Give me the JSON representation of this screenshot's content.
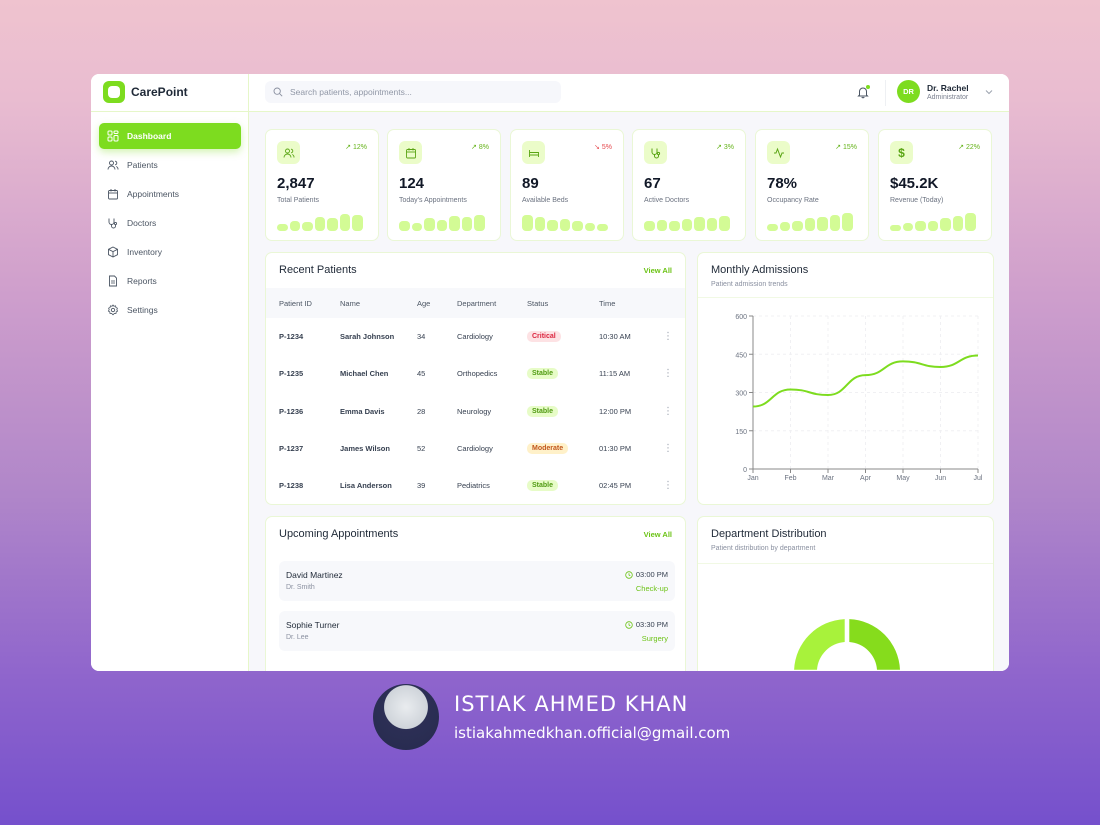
{
  "app": {
    "name": "CarePoint",
    "search_placeholder": "Search patients, appointments...",
    "user": {
      "initials": "DR",
      "name": "Dr. Rachel",
      "role": "Administrator"
    }
  },
  "sidebar": {
    "items": [
      {
        "label": "Dashboard",
        "icon": "dashboard-grid-icon",
        "active": true
      },
      {
        "label": "Patients",
        "icon": "users-icon",
        "active": false
      },
      {
        "label": "Appointments",
        "icon": "calendar-icon",
        "active": false
      },
      {
        "label": "Doctors",
        "icon": "stethoscope-icon",
        "active": false
      },
      {
        "label": "Inventory",
        "icon": "box-icon",
        "active": false
      },
      {
        "label": "Reports",
        "icon": "file-text-icon",
        "active": false
      },
      {
        "label": "Settings",
        "icon": "gear-icon",
        "active": false
      }
    ]
  },
  "stats": [
    {
      "value": "2,847",
      "label": "Total Patients",
      "trend": "12%",
      "direction": "up",
      "icon": "users-icon",
      "bars": [
        7,
        10,
        9,
        14,
        13,
        17,
        16
      ]
    },
    {
      "value": "124",
      "label": "Today's Appointments",
      "trend": "8%",
      "direction": "up",
      "icon": "calendar-icon",
      "bars": [
        10,
        8,
        13,
        11,
        15,
        14,
        16
      ]
    },
    {
      "value": "89",
      "label": "Available Beds",
      "trend": "5%",
      "direction": "down",
      "icon": "bed-icon",
      "bars": [
        16,
        14,
        11,
        12,
        10,
        8,
        7
      ]
    },
    {
      "value": "67",
      "label": "Active Doctors",
      "trend": "3%",
      "direction": "up",
      "icon": "stethoscope-icon",
      "bars": [
        10,
        11,
        10,
        12,
        14,
        13,
        15
      ]
    },
    {
      "value": "78%",
      "label": "Occupancy Rate",
      "trend": "15%",
      "direction": "up",
      "icon": "activity-icon",
      "bars": [
        7,
        9,
        10,
        13,
        14,
        16,
        18
      ]
    },
    {
      "value": "$45.2K",
      "label": "Revenue (Today)",
      "trend": "22%",
      "direction": "up",
      "icon": "dollar-icon",
      "bars": [
        6,
        8,
        10,
        10,
        13,
        15,
        18
      ]
    }
  ],
  "recent_patients": {
    "title": "Recent Patients",
    "view_all": "View All",
    "columns": [
      "Patient ID",
      "Name",
      "Age",
      "Department",
      "Status",
      "Time"
    ],
    "rows": [
      {
        "id": "P-1234",
        "name": "Sarah Johnson",
        "age": "34",
        "department": "Cardiology",
        "status": "Critical",
        "status_type": "critical",
        "time": "10:30 AM"
      },
      {
        "id": "P-1235",
        "name": "Michael Chen",
        "age": "45",
        "department": "Orthopedics",
        "status": "Stable",
        "status_type": "stable",
        "time": "11:15 AM"
      },
      {
        "id": "P-1236",
        "name": "Emma Davis",
        "age": "28",
        "department": "Neurology",
        "status": "Stable",
        "status_type": "stable",
        "time": "12:00 PM"
      },
      {
        "id": "P-1237",
        "name": "James Wilson",
        "age": "52",
        "department": "Cardiology",
        "status": "Moderate",
        "status_type": "moderate",
        "time": "01:30 PM"
      },
      {
        "id": "P-1238",
        "name": "Lisa Anderson",
        "age": "39",
        "department": "Pediatrics",
        "status": "Stable",
        "status_type": "stable",
        "time": "02:45 PM"
      }
    ]
  },
  "monthly_admissions": {
    "title": "Monthly Admissions",
    "subtitle": "Patient admission trends"
  },
  "chart_data": {
    "type": "line",
    "title": "Monthly Admissions",
    "subtitle": "Patient admission trends",
    "xlabel": "",
    "ylabel": "",
    "categories": [
      "Jan",
      "Feb",
      "Mar",
      "Apr",
      "May",
      "Jun",
      "Jul"
    ],
    "series": [
      {
        "name": "Admissions",
        "values": [
          245,
          312,
          290,
          368,
          422,
          400,
          445
        ],
        "color": "#7ddc1f"
      }
    ],
    "ylim": [
      0,
      600
    ],
    "yticks": [
      0,
      150,
      300,
      450,
      600
    ],
    "grid": true,
    "legend": "none"
  },
  "upcoming_appointments": {
    "title": "Upcoming Appointments",
    "view_all": "View All",
    "items": [
      {
        "patient": "David Martinez",
        "doctor": "Dr. Smith",
        "time": "03:00 PM",
        "type": "Check-up"
      },
      {
        "patient": "Sophie Turner",
        "doctor": "Dr. Lee",
        "time": "03:30 PM",
        "type": "Surgery"
      }
    ]
  },
  "department_distribution": {
    "title": "Department Distribution",
    "subtitle": "Patient distribution by department"
  },
  "footer": {
    "name": "ISTIAK AHMED KHAN",
    "email": "istiakahmedkhan.official@gmail.com"
  },
  "colors": {
    "accent": "#7ddc1f",
    "accent_light": "#d3fb95",
    "critical": "#dc2640",
    "moderate": "#c2561b"
  }
}
